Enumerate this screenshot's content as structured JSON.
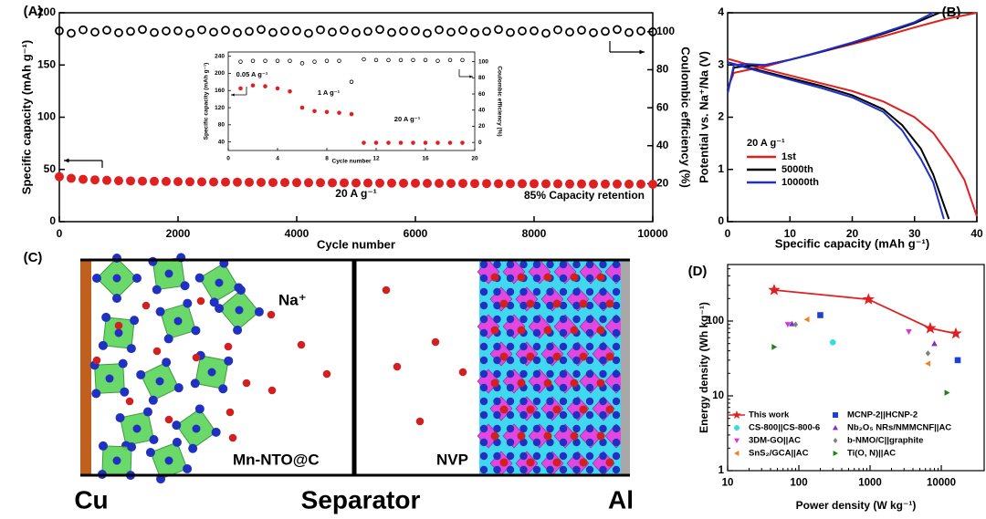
{
  "chart_data": [
    {
      "type": "scatter",
      "panel_label": "(A)",
      "xlabel": "Cycle number",
      "ylabel": "Specific capacity (mAh g⁻¹)",
      "y2label": "Coulombic efficiency (%)",
      "xlim": [
        0,
        10000
      ],
      "xticks": [
        0,
        2000,
        4000,
        6000,
        8000,
        10000
      ],
      "ylim": [
        0,
        200
      ],
      "yticks": [
        0,
        50,
        100,
        150,
        200
      ],
      "y2lim": [
        0,
        110
      ],
      "y2ticks": [
        20,
        40,
        60,
        80,
        100
      ],
      "annotations": [
        "20 A g⁻¹",
        "85% Capacity retention"
      ],
      "x": [
        0,
        200,
        400,
        600,
        800,
        1000,
        1200,
        1400,
        1600,
        1800,
        2000,
        2200,
        2400,
        2600,
        2800,
        3000,
        3200,
        3400,
        3600,
        3800,
        4000,
        4200,
        4400,
        4600,
        4800,
        5000,
        5200,
        5400,
        5600,
        5800,
        6000,
        6200,
        6400,
        6600,
        6800,
        7000,
        7200,
        7400,
        7600,
        7800,
        8000,
        8200,
        8400,
        8600,
        8800,
        9000,
        9200,
        9400,
        9600,
        9800,
        10000
      ],
      "series": [
        {
          "color": "#e02020",
          "marker": "filled",
          "values": [
            43,
            41.5,
            40.5,
            40,
            39.6,
            39.2,
            39,
            38.8,
            38.6,
            38.5,
            38.3,
            38.2,
            38.1,
            38,
            37.9,
            37.8,
            37.7,
            37.6,
            37.5,
            37.5,
            37.4,
            37.3,
            37.3,
            37.2,
            37.1,
            37,
            37,
            36.9,
            36.9,
            36.8,
            36.8,
            36.7,
            36.7,
            36.6,
            36.6,
            36.5,
            36.5,
            36.4,
            36.4,
            36.3,
            36.3,
            36.2,
            36.2,
            36.1,
            36.1,
            36,
            36,
            36,
            35.9,
            35.9,
            35.8
          ]
        },
        {
          "color": "#000000",
          "marker": "open",
          "axis": "y2",
          "values": [
            100.5,
            99.2,
            101,
            99.8,
            100.8,
            99.5,
            100.2,
            101.2,
            99.6,
            100.4,
            100.5,
            99.2,
            101,
            99.8,
            100.8,
            99.5,
            100.2,
            101.2,
            99.6,
            100.4,
            100.5,
            99.2,
            101,
            99.8,
            100.8,
            99.5,
            100.2,
            101.2,
            99.6,
            100.4,
            100.5,
            99.2,
            101,
            99.8,
            100.8,
            99.5,
            100.2,
            101.2,
            99.6,
            100.4,
            100.5,
            99.2,
            101,
            99.8,
            100.8,
            99.5,
            100.2,
            101.2,
            99.6,
            100.4,
            100
          ]
        }
      ]
    },
    {
      "type": "scatter",
      "xlabel": "Cycle number",
      "ylabel": "Specific capacity (mAh g⁻¹)",
      "y2label": "Coulombic efficiency (%)",
      "xlim": [
        0,
        20
      ],
      "xticks": [
        0,
        4,
        8,
        12,
        16,
        20
      ],
      "ylim": [
        20,
        250
      ],
      "yticks": [
        40,
        80,
        120,
        160,
        200,
        240
      ],
      "y2lim": [
        -10,
        112
      ],
      "y2ticks": [
        0,
        20,
        40,
        60,
        80,
        100
      ],
      "annotations": [
        "0.05 A g⁻¹",
        "1 A g⁻¹",
        "20 A g⁻¹"
      ],
      "x": [
        1,
        2,
        3,
        4,
        5,
        6,
        7,
        8,
        9,
        10,
        11,
        12,
        13,
        14,
        15,
        16,
        17,
        18,
        19
      ],
      "series": [
        {
          "color": "#e02020",
          "marker": "filled",
          "values": [
            165,
            172,
            170,
            165,
            158,
            120,
            112,
            110,
            108,
            105,
            38,
            38,
            38,
            38,
            38,
            38,
            38,
            38,
            38
          ]
        },
        {
          "color": "#000000",
          "marker": "open",
          "axis": "y2",
          "values": [
            100,
            101,
            101,
            101,
            101,
            98,
            100,
            101,
            101,
            75,
            103,
            102,
            102,
            102,
            102,
            102,
            101,
            102,
            102
          ]
        }
      ]
    },
    {
      "type": "line",
      "panel_label": "(B)",
      "xlabel": "Specific capacity (mAh g⁻¹)",
      "ylabel": "Potential vs. Na⁺/Na (V)",
      "xlim": [
        0,
        40
      ],
      "xticks": [
        0,
        10,
        20,
        30,
        40
      ],
      "ylim": [
        0,
        4
      ],
      "yticks": [
        0,
        1,
        2,
        3,
        4
      ],
      "legend_title": "20 A g⁻¹",
      "legend": "lower left",
      "series": [
        {
          "name": "1st",
          "color": "#e02020",
          "x": [
            0,
            1,
            3,
            6,
            10,
            15,
            20,
            25,
            30,
            35,
            40,
            null,
            0,
            5,
            10,
            15,
            20,
            25,
            30,
            33,
            36,
            38,
            40
          ],
          "values": [
            2.55,
            2.85,
            2.9,
            2.97,
            3.1,
            3.25,
            3.4,
            3.55,
            3.72,
            3.88,
            4.0,
            null,
            3.12,
            2.95,
            2.8,
            2.65,
            2.5,
            2.3,
            2.0,
            1.7,
            1.2,
            0.8,
            0.1
          ]
        },
        {
          "name": "5000th",
          "color": "#000000",
          "x": [
            0,
            1,
            3,
            6,
            10,
            15,
            20,
            25,
            30,
            34,
            null,
            0,
            5,
            10,
            15,
            20,
            25,
            28,
            31,
            33,
            35.5
          ],
          "values": [
            2.5,
            2.95,
            2.98,
            3.0,
            3.1,
            3.25,
            3.42,
            3.6,
            3.8,
            4.0,
            null,
            3.05,
            2.9,
            2.75,
            2.6,
            2.42,
            2.15,
            1.85,
            1.4,
            0.9,
            0.05
          ]
        },
        {
          "name": "10000th",
          "color": "#2030d0",
          "x": [
            0,
            1,
            3,
            6,
            10,
            15,
            20,
            25,
            30,
            33,
            null,
            0,
            5,
            10,
            15,
            20,
            25,
            28,
            31,
            33,
            34.7
          ],
          "values": [
            2.45,
            3.0,
            3.02,
            3.0,
            3.1,
            3.26,
            3.43,
            3.62,
            3.82,
            4.0,
            null,
            3.05,
            2.88,
            2.72,
            2.56,
            2.38,
            2.1,
            1.75,
            1.2,
            0.75,
            0.05
          ]
        }
      ]
    },
    {
      "type": "scatter",
      "panel_label": "(D)",
      "xlabel": "Power density (W kg⁻¹)",
      "ylabel": "Energy density (Wh kg⁻¹)",
      "xlog": true,
      "ylog": true,
      "xlim": [
        10,
        40000
      ],
      "xticks": [
        10,
        100,
        1000,
        10000
      ],
      "ylim": [
        1,
        570
      ],
      "yticks": [
        1,
        10,
        100
      ],
      "legend": "lower left",
      "series": [
        {
          "name": "This work",
          "color": "#e02020",
          "marker": "star",
          "line": true,
          "x": [
            45,
            950,
            7000,
            16000
          ],
          "values": [
            260,
            195,
            80,
            68
          ]
        },
        {
          "name": "CS-800||CS-800-6",
          "color": "#33dddd",
          "marker": "circle",
          "x": [
            300
          ],
          "values": [
            52
          ]
        },
        {
          "name": "3DM-GO||AC",
          "color": "#dd33dd",
          "marker": "triangle-down",
          "x": [
            70,
            3500
          ],
          "values": [
            90,
            72
          ]
        },
        {
          "name": "SnS₂/GCA||AC",
          "color": "#f08020",
          "marker": "triangle-left",
          "x": [
            130,
            6500
          ],
          "values": [
            105,
            27
          ]
        },
        {
          "name": "MCNP-2||HCNP-2",
          "color": "#2040d0",
          "marker": "square",
          "x": [
            200,
            17000
          ],
          "values": [
            120,
            30
          ]
        },
        {
          "name": "Nb₂O₅ NRs/NMMCNF||AC",
          "color": "#8030c0",
          "marker": "triangle-up",
          "x": [
            80,
            8000
          ],
          "values": [
            92,
            50
          ]
        },
        {
          "name": "b-NMO/C||graphite",
          "color": "#808080",
          "marker": "diamond",
          "x": [
            90,
            6500
          ],
          "values": [
            90,
            37
          ]
        },
        {
          "name": "Ti(O, N)||AC",
          "color": "#208020",
          "marker": "triangle-right",
          "x": [
            45,
            12000
          ],
          "values": [
            45,
            11
          ]
        }
      ]
    }
  ],
  "diagram": {
    "panel_label": "(C)",
    "ion_label": "Na⁺",
    "anode_label": "Mn-NTO@C",
    "cathode_label": "NVP",
    "left_collector": "Cu",
    "separator": "Separator",
    "right_collector": "Al"
  }
}
